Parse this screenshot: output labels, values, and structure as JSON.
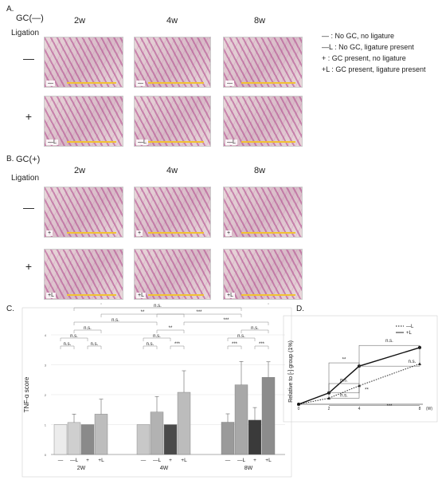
{
  "panel_a": {
    "letter": "A.",
    "gc_title": "GC(—)",
    "ligation_label": "Ligation",
    "columns": [
      "2w",
      "4w",
      "8w"
    ],
    "rows": [
      {
        "sign": "—",
        "tag": "—"
      },
      {
        "sign": "+",
        "tag": "—L"
      }
    ]
  },
  "legend": [
    "—  : No GC, no ligature",
    "—L : No GC, ligature present",
    "+    : GC present, no ligature",
    "+L : GC present, ligature present"
  ],
  "panel_b": {
    "letter": "B.",
    "gc_title": "GC(+)",
    "ligation_label": "Ligation",
    "columns": [
      "2w",
      "4w",
      "8w"
    ],
    "rows": [
      {
        "sign": "—",
        "tag": "+"
      },
      {
        "sign": "+",
        "tag": "+L"
      }
    ]
  },
  "panel_c": {
    "letter": "C.",
    "chart_data": {
      "type": "bar",
      "ylabel": "TNF-α score",
      "ylim": [
        0,
        4
      ],
      "yticks": [
        "0",
        "1",
        "2",
        "3",
        "4"
      ],
      "groups": [
        "2W",
        "4W",
        "8W"
      ],
      "bar_labels": [
        "—",
        "—L",
        "+",
        "+L"
      ],
      "series": [
        {
          "values": [
            1.0,
            1.07,
            1.0,
            1.35
          ],
          "err": [
            0,
            0.28,
            0,
            0.5
          ]
        },
        {
          "values": [
            1.0,
            1.42,
            1.0,
            2.08
          ],
          "err": [
            0,
            0.52,
            0,
            0.72
          ]
        },
        {
          "values": [
            1.08,
            2.33,
            1.15,
            2.58
          ],
          "err": [
            0.28,
            0.78,
            0.42,
            0.52
          ]
        }
      ],
      "bar_colors": [
        [
          "#ececec",
          "#cfcfcf",
          "#8a8a8a",
          "#bdbdbd"
        ],
        [
          "#c8c8c8",
          "#b2b2b2",
          "#4a4a4a",
          "#bcbcbc"
        ],
        [
          "#9a9a9a",
          "#a8a8a8",
          "#3a3a3a",
          "#8c8c8c"
        ]
      ],
      "significance": [
        "n.s.",
        "n.s.",
        "n.s.",
        "n.s.",
        "n.s.",
        "**",
        "n.s.",
        "***",
        "n.s.",
        "**",
        "***",
        "n.s.",
        "**",
        "***",
        "***",
        "***",
        "n.s.",
        "n.s."
      ]
    }
  },
  "panel_d": {
    "letter": "D.",
    "chart_data": {
      "type": "line",
      "ylabel": "Relative to [-] group (1%)",
      "x_unit": "(W)",
      "x": [
        0,
        2,
        4,
        8
      ],
      "xticks": [
        "0",
        "2",
        "4",
        "8"
      ],
      "series": [
        {
          "name": "—L",
          "values": [
            0,
            0.28,
            0.85,
            1.85
          ],
          "style": "dotted",
          "marker": "triangle"
        },
        {
          "name": "+L",
          "values": [
            0,
            0.52,
            1.75,
            2.6
          ],
          "style": "solid",
          "marker": "circle"
        }
      ],
      "significance": [
        "**",
        "n.s.",
        "n.s.",
        "n.s.",
        "**",
        "n.s.",
        "***"
      ]
    }
  }
}
